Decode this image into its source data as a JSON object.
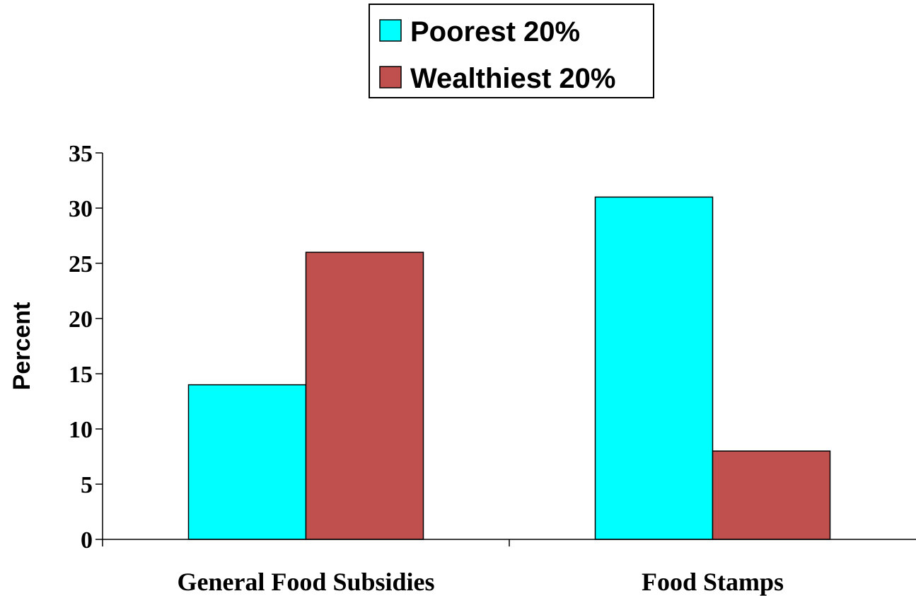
{
  "chart_data": {
    "type": "bar",
    "categories": [
      "General Food Subsidies",
      "Food Stamps"
    ],
    "series": [
      {
        "name": "Poorest 20%",
        "values": [
          14,
          31
        ],
        "color": "#00FFFF"
      },
      {
        "name": "Wealthiest 20%",
        "values": [
          26,
          8
        ],
        "color": "#C0504D"
      }
    ],
    "ylabel": "Percent",
    "xlabel": "",
    "ylim": [
      0,
      35
    ],
    "yticks": [
      0,
      5,
      10,
      15,
      20,
      25,
      30,
      35
    ],
    "grid": false,
    "legend_position": "top-center"
  }
}
